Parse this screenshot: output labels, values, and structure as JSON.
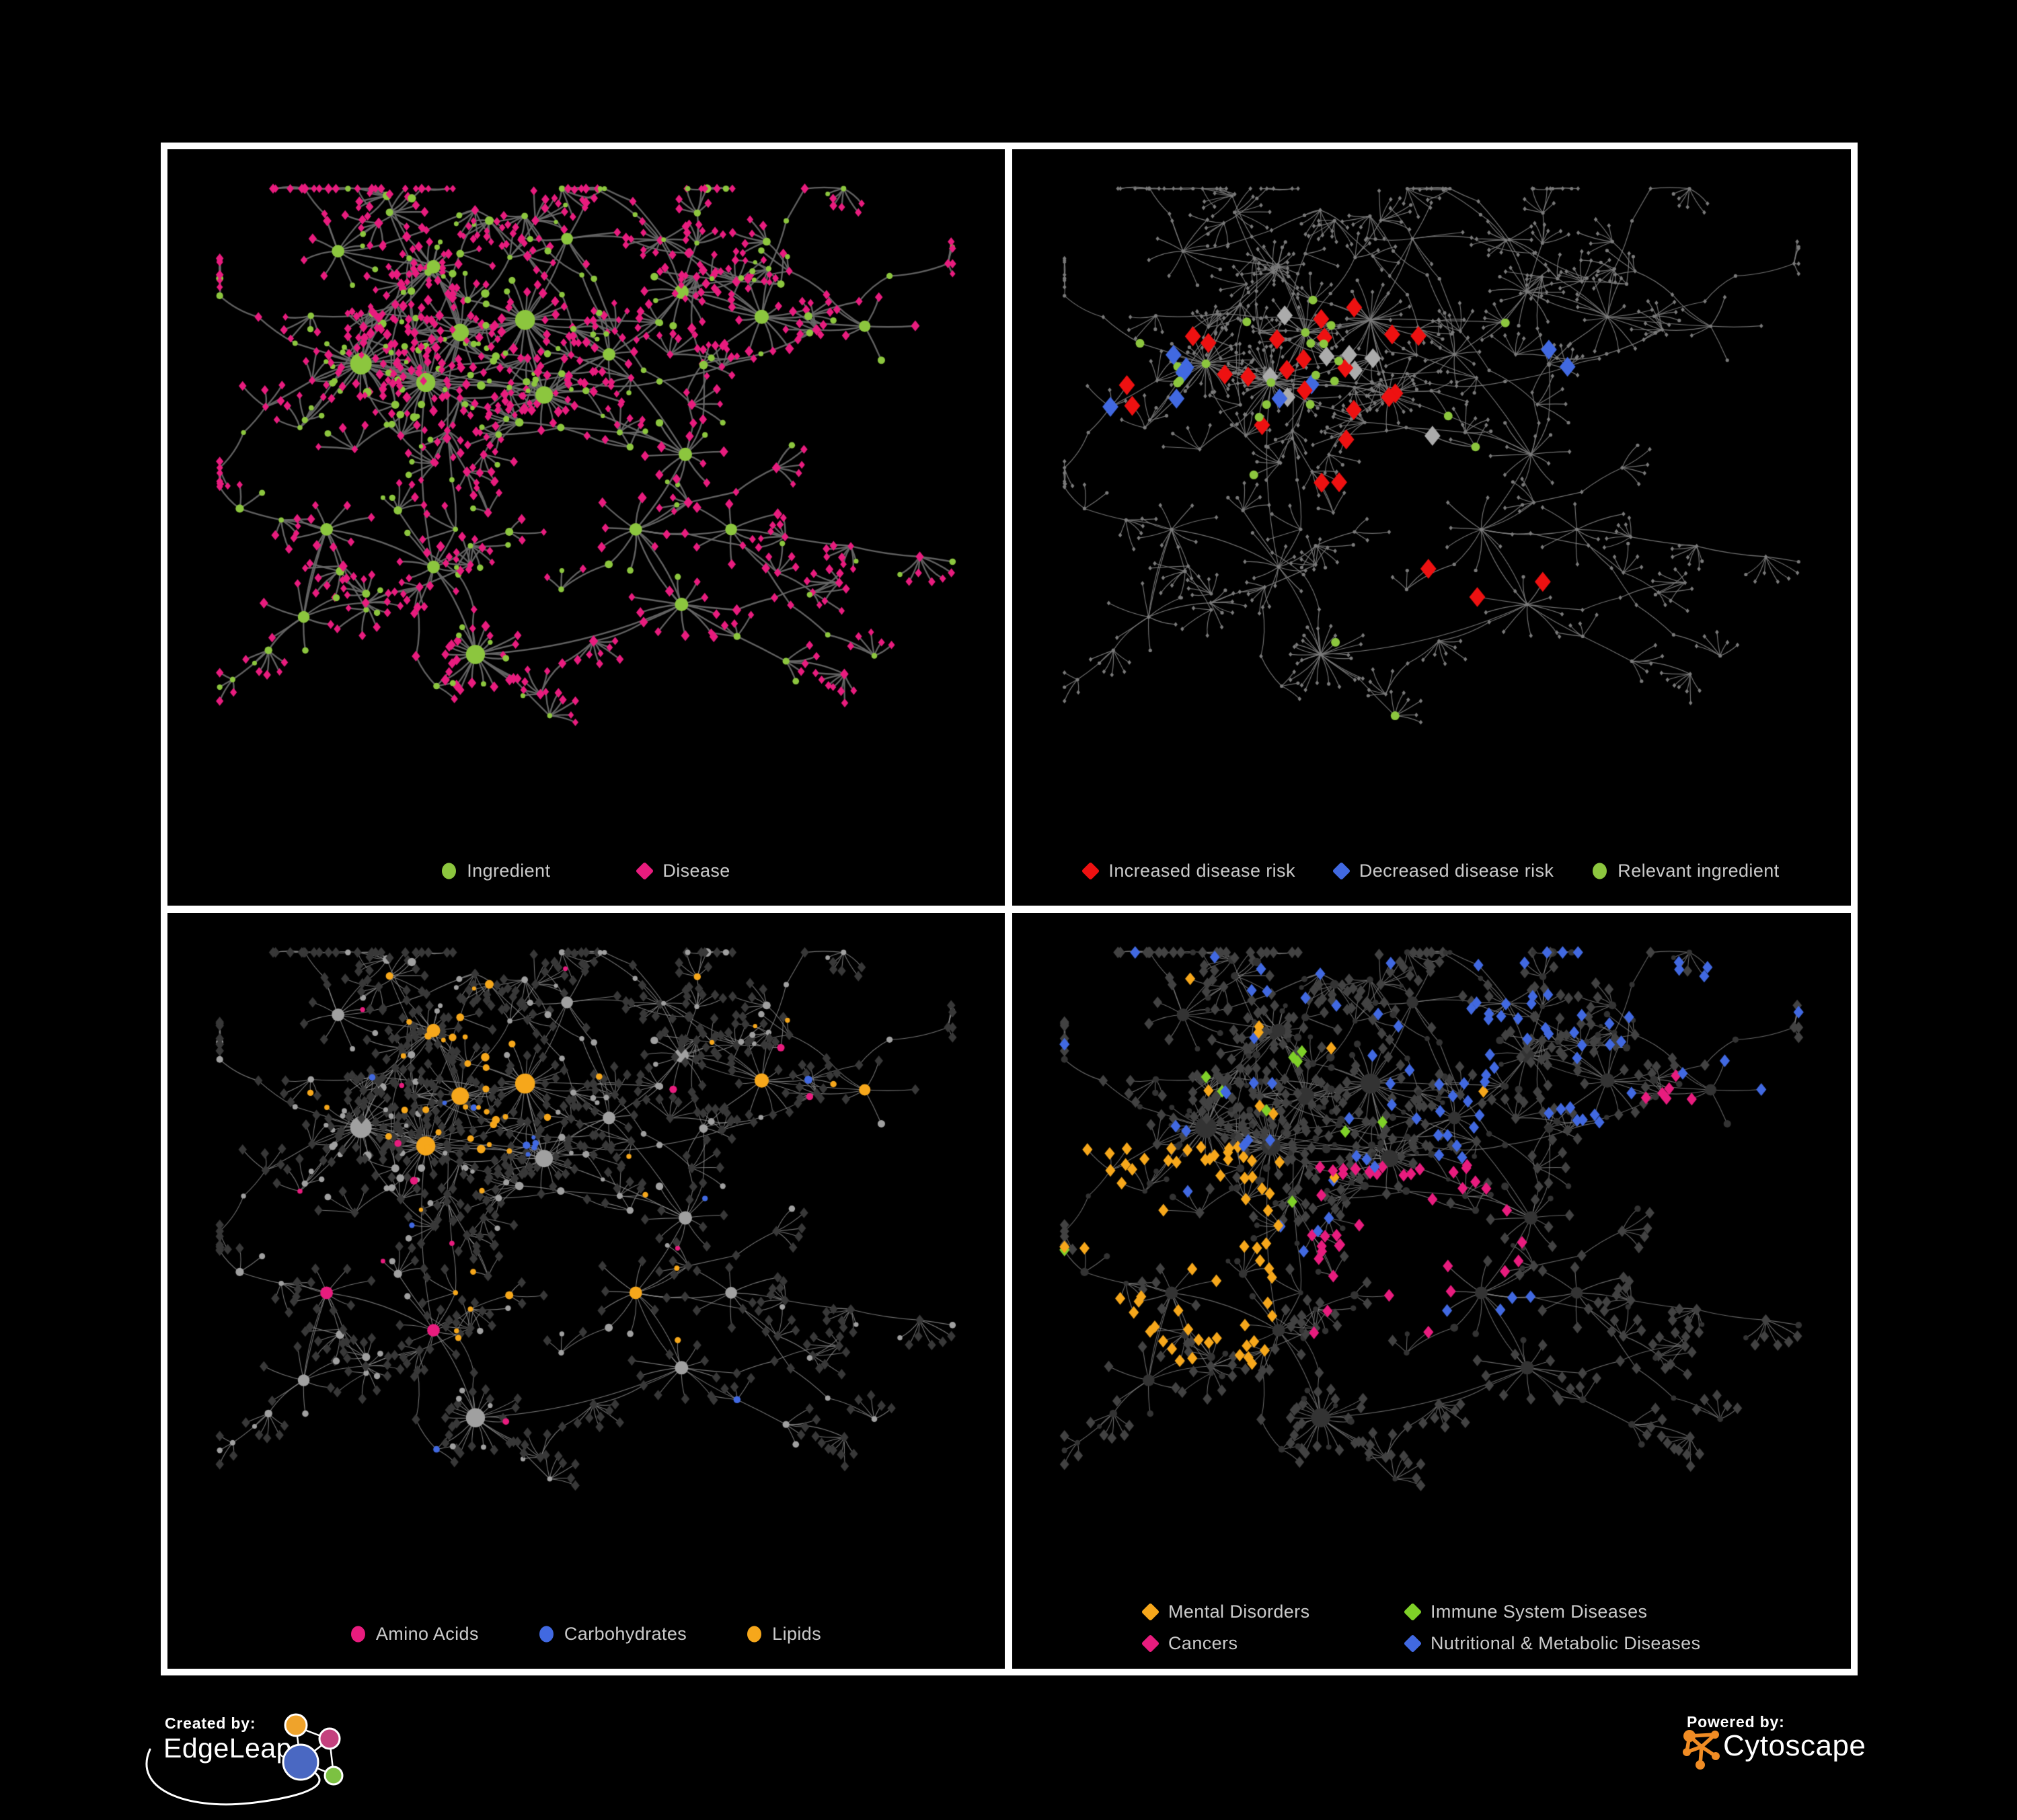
{
  "figure": {
    "background": "#000000",
    "frame_color": "#FFFFFF"
  },
  "panels": {
    "p1": {
      "name": "ingredient-disease-network",
      "legend": [
        {
          "label": "Ingredient",
          "shape": "circle",
          "color": "#8CC63E"
        },
        {
          "label": "Disease",
          "shape": "diamond",
          "color": "#E81C7E"
        }
      ]
    },
    "p2": {
      "name": "disease-risk-network",
      "legend": [
        {
          "label": "Increased disease risk",
          "shape": "diamond",
          "color": "#EE1111"
        },
        {
          "label": "Decreased disease risk",
          "shape": "diamond",
          "color": "#4169E1"
        },
        {
          "label": "Relevant ingredient",
          "shape": "circle",
          "color": "#8CC63E"
        }
      ]
    },
    "p3": {
      "name": "ingredient-class-network",
      "legend": [
        {
          "label": "Amino Acids",
          "shape": "circle",
          "color": "#E81C7E"
        },
        {
          "label": "Carbohydrates",
          "shape": "circle",
          "color": "#4169E1"
        },
        {
          "label": "Lipids",
          "shape": "circle",
          "color": "#F6A71B"
        }
      ]
    },
    "p4": {
      "name": "disease-class-network",
      "legend": [
        {
          "label": "Mental Disorders",
          "shape": "diamond",
          "color": "#F6A71B"
        },
        {
          "label": "Immune System Diseases",
          "shape": "diamond",
          "color": "#7FD028"
        },
        {
          "label": "Cancers",
          "shape": "diamond",
          "color": "#E81C7E"
        },
        {
          "label": "Nutritional & Metabolic Diseases",
          "shape": "diamond",
          "color": "#4169E1"
        }
      ]
    }
  },
  "footer": {
    "created_by_caption": "Created by:",
    "edgeleap_name": "EdgeLeap",
    "powered_by_caption": "Powered by:",
    "cytoscape_name": "Cytoscape"
  },
  "theme": {
    "edgeleap-orange": "#EFA32B",
    "edgeleap-pink": "#C4417E",
    "edgeleap-blue": "#4A68C2",
    "edgeleap-green": "#7CC142",
    "cytoscape-orange": "#F08C24",
    "logo-white": "#FFFFFF"
  },
  "network": {
    "seed": 1337,
    "hubs": [
      [
        0.205,
        0.3,
        30,
        6
      ],
      [
        0.29,
        0.33,
        24,
        5
      ],
      [
        0.335,
        0.25,
        20,
        4
      ],
      [
        0.42,
        0.23,
        26,
        4
      ],
      [
        0.3,
        0.145,
        10,
        4
      ],
      [
        0.175,
        0.12,
        8,
        3
      ],
      [
        0.445,
        0.35,
        20,
        4
      ],
      [
        0.53,
        0.285,
        8,
        3
      ],
      [
        0.625,
        0.185,
        12,
        3
      ],
      [
        0.73,
        0.225,
        12,
        3
      ],
      [
        0.865,
        0.24,
        5,
        2
      ],
      [
        0.63,
        0.445,
        10,
        3
      ],
      [
        0.565,
        0.565,
        8,
        3
      ],
      [
        0.625,
        0.685,
        10,
        3
      ],
      [
        0.355,
        0.765,
        24,
        2
      ],
      [
        0.3,
        0.625,
        8,
        3
      ],
      [
        0.16,
        0.565,
        8,
        3
      ],
      [
        0.13,
        0.705,
        6,
        2
      ],
      [
        0.475,
        0.1,
        6,
        2
      ],
      [
        0.69,
        0.565,
        6,
        2
      ]
    ],
    "extra_links": [
      [
        0,
        6
      ],
      [
        3,
        6
      ],
      [
        1,
        15
      ],
      [
        12,
        13
      ],
      [
        6,
        11
      ],
      [
        2,
        4
      ],
      [
        16,
        17
      ],
      [
        8,
        9
      ]
    ],
    "panel_styles": {
      "p1": {
        "edge": {
          "color": "#696969",
          "width": 2.4,
          "alpha": 0.92
        },
        "base": {
          "circle": {
            "color": "#8CC63E"
          },
          "diamond": {
            "color": "#E81C7E"
          }
        },
        "highlights": []
      },
      "p2": {
        "edge": {
          "color": "#7D7D7D",
          "width": 1.2,
          "alpha": 0.9
        },
        "base": {
          "circle": {
            "color": "#7A7A7A",
            "size": 2.6
          },
          "diamond": {
            "color": "#7A7A7A",
            "size": 2.6
          }
        },
        "highlights": [
          {
            "target": "diamond",
            "color": "#4169E1",
            "size": 11,
            "p": 0.5,
            "max": 6,
            "boxes": [
              [
                0.08,
                0.27,
                0.18,
                0.45
              ]
            ]
          },
          {
            "target": "diamond",
            "color": "#4169E1",
            "size": 11,
            "p": 0.9,
            "max": 2,
            "boxes": [
              [
                0.63,
                0.24,
                0.74,
                0.34
              ]
            ]
          },
          {
            "target": "diamond",
            "color": "#4169E1",
            "size": 11,
            "p": 0.5,
            "max": 2,
            "boxes": [
              [
                0.29,
                0.33,
                0.37,
                0.43
              ]
            ]
          },
          {
            "target": "diamond",
            "color": "#EE1111",
            "size": 11,
            "p": 0.17,
            "max": 21,
            "boxes": [
              [
                0.06,
                0.2,
                0.57,
                0.47
              ]
            ]
          },
          {
            "target": "diamond",
            "color": "#EE1111",
            "size": 11,
            "p": 0.5,
            "max": 3,
            "boxes": [
              [
                0.49,
                0.58,
                0.68,
                0.79
              ]
            ]
          },
          {
            "target": "diamond",
            "color": "#EE1111",
            "size": 11,
            "p": 0.4,
            "max": 2,
            "boxes": [
              [
                0.27,
                0.46,
                0.41,
                0.57
              ]
            ]
          },
          {
            "target": "diamond",
            "color": "#ABABAB",
            "size": 11,
            "p": 0.11,
            "max": 8,
            "boxes": [
              [
                0.06,
                0.21,
                0.57,
                0.54
              ]
            ]
          },
          {
            "target": "circle",
            "color": "#8CC63E",
            "size": 6.5,
            "p": 0.32,
            "max": 22,
            "boxes": [
              [
                0.06,
                0.17,
                0.6,
                0.58
              ]
            ]
          },
          {
            "target": "circle",
            "color": "#8CC63E",
            "size": 6.5,
            "p": 0.4,
            "max": 2,
            "boxes": [
              [
                0.3,
                0.68,
                0.54,
                0.88
              ]
            ]
          }
        ]
      },
      "p3": {
        "edge": {
          "color": "#909090",
          "width": 1.1,
          "alpha": 0.8
        },
        "base": {
          "circle": {
            "color": "#A0A0A0"
          },
          "diamond": {
            "color": "#383838",
            "size": 5.8
          }
        },
        "highlights": [
          {
            "target": "circle",
            "color": "#4169E1",
            "keepSize": true,
            "p": 0.33,
            "max": 10,
            "boxes": [
              [
                0.31,
                0.26,
                0.44,
                0.4
              ]
            ]
          },
          {
            "target": "circle",
            "color": "#F6A71B",
            "keepSize": true,
            "p": 0.8,
            "max": 40,
            "boxes": [
              [
                0.26,
                0.13,
                0.45,
                0.34
              ]
            ]
          },
          {
            "target": "circle",
            "color": "#F6A71B",
            "keepSize": true,
            "p": 0.45,
            "max": 18,
            "boxes": [
              [
                0.27,
                0.4,
                0.5,
                0.64
              ]
            ]
          },
          {
            "target": "circle",
            "color": "#F6A71B",
            "keepSize": true,
            "p": 0.1,
            "max": 22,
            "boxes": [
              [
                0,
                0,
                1,
                1
              ]
            ]
          },
          {
            "target": "circle",
            "color": "#E81C7E",
            "keepSize": true,
            "p": 0.11,
            "max": 24,
            "boxes": [
              [
                0,
                0,
                1,
                1
              ]
            ]
          },
          {
            "target": "circle",
            "color": "#4169E1",
            "keepSize": true,
            "p": 0.035,
            "max": 6,
            "boxes": [
              [
                0,
                0,
                1,
                1
              ]
            ]
          }
        ]
      },
      "p4": {
        "edge": {
          "color": "#8A8A8A",
          "width": 1.1,
          "alpha": 0.75
        },
        "base": {
          "circle": {
            "color": "#333333"
          },
          "diamond": {
            "color": "#424242",
            "size": 6.4
          }
        },
        "highlights": [
          {
            "target": "diamond",
            "color": "#4169E1",
            "size": 7,
            "p": 0.8,
            "max": 14,
            "boxes": [
              [
                0.52,
                0.54,
                0.64,
                0.66
              ]
            ]
          },
          {
            "target": "diamond",
            "color": "#F6A71B",
            "size": 7,
            "p": 0.8,
            "max": 90,
            "boxes": [
              [
                0.04,
                0.33,
                0.3,
                0.68
              ]
            ]
          },
          {
            "target": "diamond",
            "color": "#E81C7E",
            "size": 7,
            "p": 0.5,
            "max": 55,
            "boxes": [
              [
                0.34,
                0.36,
                0.63,
                0.64
              ]
            ]
          },
          {
            "target": "diamond",
            "color": "#E81C7E",
            "size": 7,
            "p": 0.5,
            "max": 8,
            "boxes": [
              [
                0.78,
                0.2,
                0.93,
                0.35
              ]
            ]
          },
          {
            "target": "diamond",
            "color": "#4169E1",
            "size": 7,
            "p": 0.4,
            "max": 55,
            "boxes": [
              [
                0.5,
                0.02,
                0.98,
                0.42
              ]
            ]
          },
          {
            "target": "diamond",
            "color": "#4169E1",
            "size": 7,
            "p": 0.1,
            "max": 40,
            "boxes": [
              [
                0,
                0,
                1,
                1
              ]
            ]
          },
          {
            "target": "diamond",
            "color": "#7FD028",
            "size": 7,
            "p": 0.03,
            "max": 10,
            "boxes": [
              [
                0,
                0,
                1,
                1
              ]
            ]
          },
          {
            "target": "diamond",
            "color": "#F6A71B",
            "size": 7,
            "p": 0.05,
            "max": 12,
            "boxes": [
              [
                0,
                0,
                1,
                1
              ]
            ]
          }
        ]
      }
    }
  }
}
